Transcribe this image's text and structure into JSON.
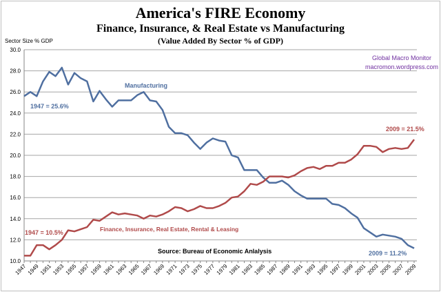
{
  "chart_data": {
    "type": "line",
    "title": "America's FIRE Economy",
    "subtitle": "Finance, Insurance, & Real Estate vs Manufacturing",
    "subsubtitle": "(Value Added By Sector % of GDP)",
    "ylabel": "Sector Size % GDP",
    "xlabel": "",
    "ylim": [
      10,
      30
    ],
    "yticks": [
      "10.0",
      "12.0",
      "14.0",
      "16.0",
      "18.0",
      "20.0",
      "22.0",
      "24.0",
      "26.0",
      "28.0",
      "30.0"
    ],
    "xlim": [
      1947,
      2009
    ],
    "grid": "horizontal",
    "x": [
      1947,
      1948,
      1949,
      1950,
      1951,
      1952,
      1953,
      1954,
      1955,
      1956,
      1957,
      1958,
      1959,
      1960,
      1961,
      1962,
      1963,
      1964,
      1965,
      1966,
      1967,
      1968,
      1969,
      1970,
      1971,
      1972,
      1973,
      1974,
      1975,
      1976,
      1977,
      1978,
      1979,
      1980,
      1981,
      1982,
      1983,
      1984,
      1985,
      1986,
      1987,
      1988,
      1989,
      1990,
      1991,
      1992,
      1993,
      1994,
      1995,
      1996,
      1997,
      1998,
      1999,
      2000,
      2001,
      2002,
      2003,
      2004,
      2005,
      2006,
      2007,
      2008,
      2009
    ],
    "series": [
      {
        "name": "Manufacturing",
        "color": "#4f6fa0",
        "values": [
          25.6,
          26.0,
          25.6,
          27.0,
          27.9,
          27.5,
          28.3,
          26.7,
          27.8,
          27.3,
          27.0,
          25.1,
          26.1,
          25.3,
          24.6,
          25.2,
          25.2,
          25.2,
          25.7,
          26.0,
          25.2,
          25.1,
          24.3,
          22.7,
          22.1,
          22.1,
          21.9,
          21.2,
          20.6,
          21.2,
          21.6,
          21.4,
          21.3,
          20.0,
          19.8,
          18.6,
          18.6,
          18.6,
          17.9,
          17.4,
          17.4,
          17.6,
          17.2,
          16.6,
          16.2,
          15.9,
          15.9,
          15.9,
          15.9,
          15.4,
          15.3,
          15.0,
          14.5,
          14.1,
          13.1,
          12.7,
          12.3,
          12.5,
          12.4,
          12.3,
          12.1,
          11.5,
          11.2
        ]
      },
      {
        "name": "Finance, Insurance, Real Estate, Rental  & Leasing",
        "color": "#b04a4a",
        "values": [
          10.5,
          10.5,
          11.5,
          11.5,
          11.1,
          11.5,
          12.0,
          12.9,
          12.8,
          13.0,
          13.2,
          13.9,
          13.8,
          14.2,
          14.6,
          14.4,
          14.5,
          14.4,
          14.3,
          14.0,
          14.3,
          14.2,
          14.4,
          14.7,
          15.1,
          15.0,
          14.7,
          14.9,
          15.2,
          15.0,
          15.0,
          15.2,
          15.5,
          16.0,
          16.1,
          16.6,
          17.3,
          17.2,
          17.5,
          18.0,
          18.0,
          18.0,
          17.9,
          18.1,
          18.5,
          18.8,
          18.9,
          18.7,
          19.0,
          19.0,
          19.3,
          19.3,
          19.6,
          20.1,
          20.9,
          20.9,
          20.8,
          20.3,
          20.6,
          20.7,
          20.6,
          20.7,
          21.5
        ]
      }
    ],
    "annotations": {
      "mfg_label": "Manufacturing",
      "mfg_start": "1947 = 25.6%",
      "mfg_end": "2009 = 11.2%",
      "fire_label": "Finance, Insurance, Real Estate, Rental  & Leasing",
      "fire_start": "1947 = 10.5%",
      "fire_end": "2009 = 21.5%",
      "source": "Source:  Bureau of Economic Anlalysis",
      "brand1": "Global Macro Monitor",
      "brand2": "macromon.wordpress.com"
    },
    "colors": {
      "brand": "#7030a0",
      "grid": "#a6a6a6"
    }
  }
}
